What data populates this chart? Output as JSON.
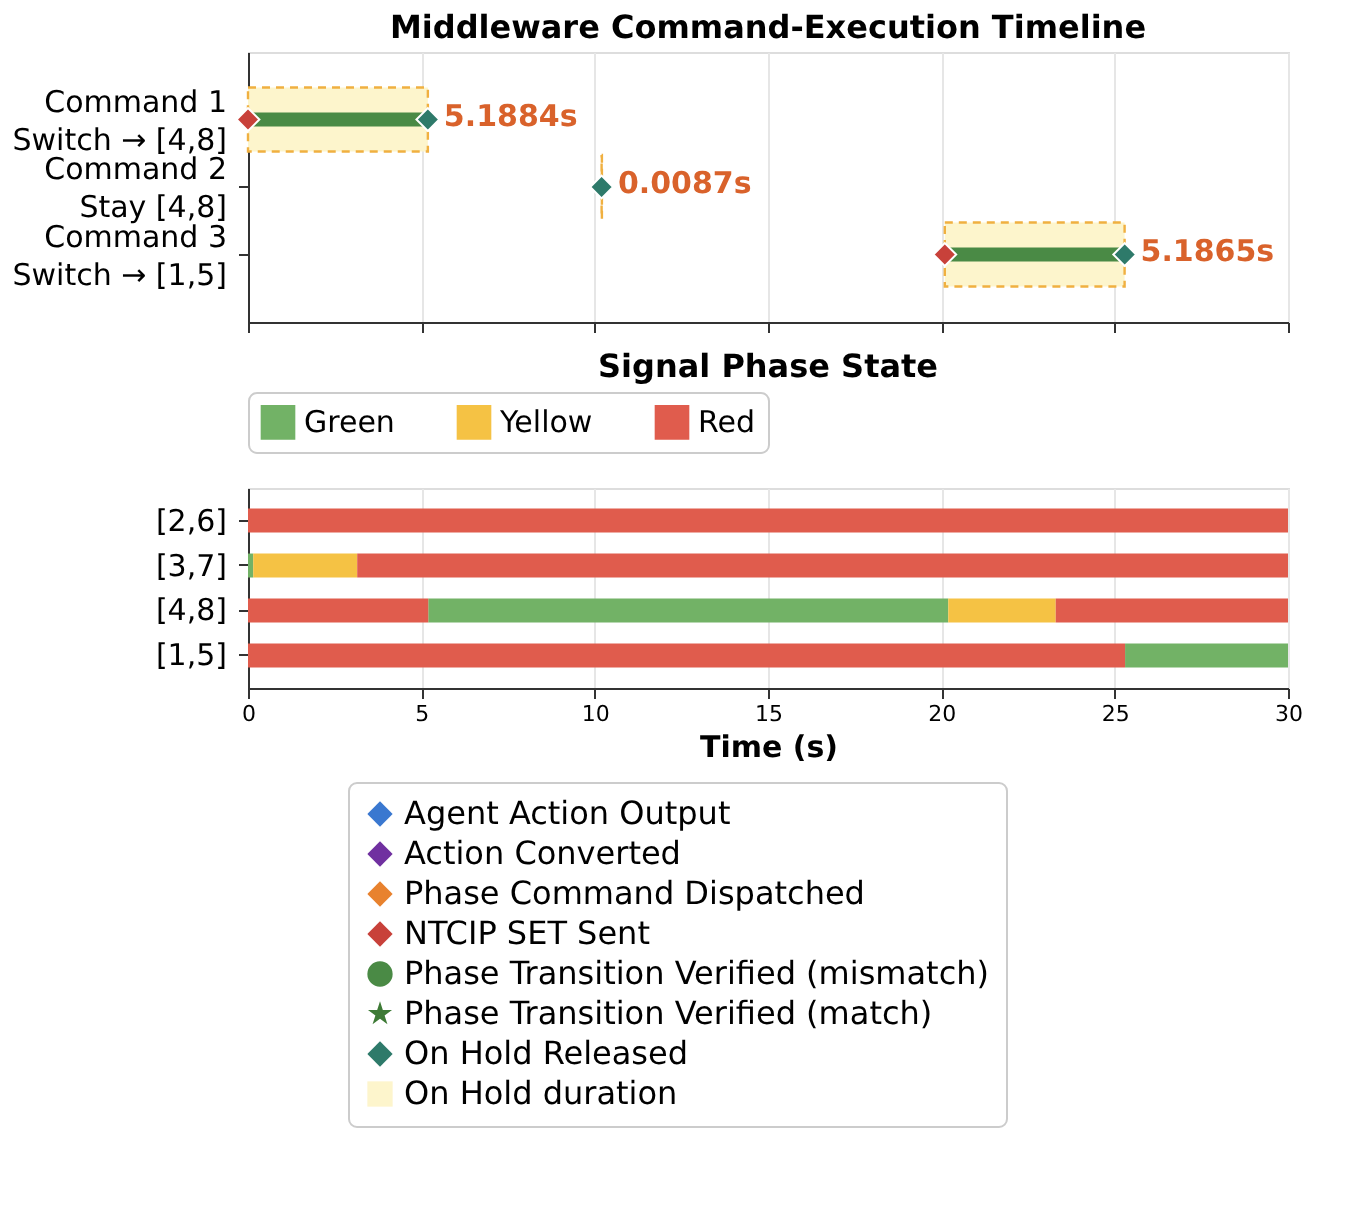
{
  "chart_data": [
    {
      "type": "bar",
      "orientation": "horizontal",
      "title": "Middleware Command-Execution Timeline",
      "categories": [
        "Command 1\nSwitch → [4,8]",
        "Command 2\nStay [4,8]",
        "Command 3\nSwitch → [1,5]"
      ],
      "series": [
        {
          "name": "Agent Action Output",
          "type": "scatter",
          "marker": "diamond",
          "color": "#3a78d0",
          "values": [
            null,
            null,
            null
          ]
        },
        {
          "name": "Action Converted",
          "type": "scatter",
          "marker": "diamond",
          "color": "#7030a0",
          "values": [
            null,
            null,
            null
          ]
        },
        {
          "name": "Phase Command Dispatched",
          "type": "scatter",
          "marker": "diamond",
          "color": "#e8822e",
          "values": [
            null,
            null,
            null
          ]
        },
        {
          "name": "NTCIP SET Sent",
          "type": "scatter",
          "marker": "diamond",
          "color": "#c8413a",
          "values": [
            0,
            null,
            20.1
          ]
        },
        {
          "name": "Phase Transition Verified (mismatch)",
          "type": "scatter",
          "marker": "circle",
          "color": "#4a8a45",
          "values": [
            null,
            null,
            null
          ]
        },
        {
          "name": "Phase Transition Verified (match)",
          "type": "scatter",
          "marker": "star",
          "color": "#3d7a35",
          "values": [
            null,
            null,
            null
          ]
        },
        {
          "name": "On Hold Released",
          "type": "scatter",
          "marker": "diamond",
          "color": "#2e7a6a",
          "values": [
            5.1884,
            10.2,
            25.29
          ]
        },
        {
          "name": "On Hold duration",
          "type": "bar",
          "color": "#fdf5cc",
          "base": [
            0,
            10.2,
            20.1
          ],
          "values": [
            5.1884,
            0.0087,
            5.1865
          ],
          "value_labels": [
            "5.1884s",
            "0.0087s",
            "5.1865s"
          ]
        },
        {
          "type": "bar",
          "color": "#4a8a45",
          "base": [
            0,
            null,
            20.1
          ],
          "values": [
            5.1884,
            null,
            5.1865
          ]
        }
      ],
      "xlim": [
        0,
        30
      ],
      "xticks": [
        0,
        5,
        10,
        15,
        20,
        25,
        30
      ],
      "tick_labels": "y",
      "grid": "x",
      "legend": "bottom"
    },
    {
      "type": "bar",
      "orientation": "horizontal",
      "title": "Signal Phase State",
      "xlabel": "Time (s)",
      "categories": [
        "[2,6]",
        "[3,7]",
        "[4,8]",
        "[1,5]"
      ],
      "series": [
        {
          "name": "Green",
          "color": "#72b266",
          "base": [
            null,
            0,
            5.2,
            25.3
          ],
          "values": [
            null,
            0.15,
            15,
            4.7
          ]
        },
        {
          "name": "Yellow",
          "color": "#f5c244",
          "base": [
            null,
            0.15,
            20.2,
            null
          ],
          "values": [
            null,
            3,
            3.1,
            null
          ]
        },
        {
          "name": "Red",
          "color": "#e05c4d",
          "base": [
            0,
            3.15,
            0,
            0
          ],
          "values": [
            30,
            26.85,
            5.2,
            25.3
          ]
        },
        {
          "color": "#e05c4d",
          "base": [
            null,
            null,
            23.3,
            null
          ],
          "values": [
            null,
            null,
            6.7,
            null
          ]
        }
      ],
      "xlim": [
        0,
        30
      ],
      "xticks": [
        0,
        5,
        10,
        15,
        20,
        25,
        30
      ],
      "grid": "x",
      "legend": "top"
    }
  ]
}
